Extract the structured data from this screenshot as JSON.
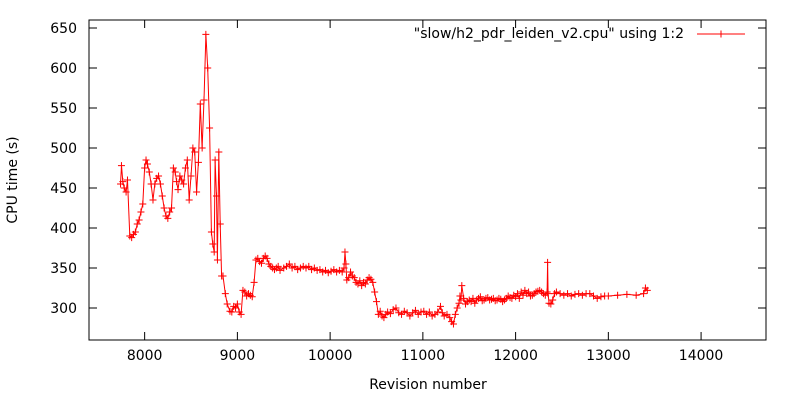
{
  "chart_data": {
    "type": "line",
    "title": "",
    "xlabel": "Revision number",
    "ylabel": "CPU time (s)",
    "xlim": [
      7400,
      14700
    ],
    "ylim": [
      260,
      660
    ],
    "xticks": [
      8000,
      9000,
      10000,
      11000,
      12000,
      13000,
      14000
    ],
    "yticks": [
      300,
      350,
      400,
      450,
      500,
      550,
      600,
      650
    ],
    "grid": false,
    "legend_position": "top-right",
    "series_color": "#ff0000",
    "series": [
      {
        "name": "\"slow/h2_pdr_leiden_v2.cpu\" using 1:2",
        "points": [
          [
            7740,
            455
          ],
          [
            7750,
            478
          ],
          [
            7765,
            458
          ],
          [
            7780,
            450
          ],
          [
            7800,
            445
          ],
          [
            7815,
            460
          ],
          [
            7840,
            390
          ],
          [
            7860,
            388
          ],
          [
            7880,
            392
          ],
          [
            7900,
            395
          ],
          [
            7920,
            405
          ],
          [
            7940,
            410
          ],
          [
            7960,
            420
          ],
          [
            7980,
            430
          ],
          [
            8000,
            475
          ],
          [
            8015,
            485
          ],
          [
            8030,
            480
          ],
          [
            8050,
            470
          ],
          [
            8070,
            455
          ],
          [
            8090,
            435
          ],
          [
            8110,
            455
          ],
          [
            8130,
            462
          ],
          [
            8150,
            465
          ],
          [
            8170,
            455
          ],
          [
            8190,
            440
          ],
          [
            8210,
            425
          ],
          [
            8230,
            415
          ],
          [
            8250,
            412
          ],
          [
            8270,
            420
          ],
          [
            8290,
            425
          ],
          [
            8310,
            475
          ],
          [
            8330,
            470
          ],
          [
            8345,
            458
          ],
          [
            8360,
            448
          ],
          [
            8380,
            465
          ],
          [
            8400,
            460
          ],
          [
            8420,
            455
          ],
          [
            8440,
            475
          ],
          [
            8460,
            485
          ],
          [
            8480,
            435
          ],
          [
            8500,
            465
          ],
          [
            8520,
            500
          ],
          [
            8540,
            495
          ],
          [
            8560,
            445
          ],
          [
            8580,
            482
          ],
          [
            8600,
            555
          ],
          [
            8620,
            500
          ],
          [
            8640,
            560
          ],
          [
            8660,
            642
          ],
          [
            8680,
            600
          ],
          [
            8700,
            525
          ],
          [
            8720,
            395
          ],
          [
            8735,
            380
          ],
          [
            8750,
            370
          ],
          [
            8760,
            485
          ],
          [
            8775,
            440
          ],
          [
            8785,
            360
          ],
          [
            8800,
            495
          ],
          [
            8815,
            405
          ],
          [
            8830,
            340
          ],
          [
            8845,
            340
          ],
          [
            8870,
            318
          ],
          [
            8890,
            305
          ],
          [
            8920,
            296
          ],
          [
            8940,
            295
          ],
          [
            8960,
            302
          ],
          [
            8980,
            300
          ],
          [
            9000,
            305
          ],
          [
            9020,
            295
          ],
          [
            9040,
            292
          ],
          [
            9060,
            322
          ],
          [
            9080,
            320
          ],
          [
            9100,
            315
          ],
          [
            9120,
            318
          ],
          [
            9140,
            316
          ],
          [
            9160,
            314
          ],
          [
            9180,
            332
          ],
          [
            9200,
            360
          ],
          [
            9220,
            362
          ],
          [
            9240,
            358
          ],
          [
            9260,
            356
          ],
          [
            9280,
            362
          ],
          [
            9300,
            365
          ],
          [
            9320,
            362
          ],
          [
            9340,
            355
          ],
          [
            9360,
            352
          ],
          [
            9380,
            350
          ],
          [
            9400,
            348
          ],
          [
            9420,
            350
          ],
          [
            9440,
            352
          ],
          [
            9460,
            347
          ],
          [
            9500,
            350
          ],
          [
            9530,
            352
          ],
          [
            9560,
            355
          ],
          [
            9590,
            350
          ],
          [
            9620,
            352
          ],
          [
            9650,
            348
          ],
          [
            9680,
            350
          ],
          [
            9710,
            352
          ],
          [
            9740,
            350
          ],
          [
            9770,
            352
          ],
          [
            9800,
            348
          ],
          [
            9830,
            350
          ],
          [
            9860,
            347
          ],
          [
            9890,
            348
          ],
          [
            9920,
            345
          ],
          [
            9950,
            347
          ],
          [
            9980,
            344
          ],
          [
            10010,
            346
          ],
          [
            10040,
            348
          ],
          [
            10070,
            345
          ],
          [
            10100,
            347
          ],
          [
            10130,
            345
          ],
          [
            10150,
            350
          ],
          [
            10160,
            370
          ],
          [
            10170,
            355
          ],
          [
            10180,
            335
          ],
          [
            10200,
            338
          ],
          [
            10220,
            345
          ],
          [
            10240,
            340
          ],
          [
            10260,
            338
          ],
          [
            10280,
            332
          ],
          [
            10300,
            330
          ],
          [
            10320,
            334
          ],
          [
            10340,
            328
          ],
          [
            10360,
            332
          ],
          [
            10380,
            330
          ],
          [
            10400,
            335
          ],
          [
            10420,
            338
          ],
          [
            10440,
            336
          ],
          [
            10460,
            332
          ],
          [
            10480,
            320
          ],
          [
            10500,
            308
          ],
          [
            10520,
            292
          ],
          [
            10540,
            296
          ],
          [
            10560,
            290
          ],
          [
            10580,
            288
          ],
          [
            10600,
            292
          ],
          [
            10620,
            295
          ],
          [
            10650,
            293
          ],
          [
            10680,
            298
          ],
          [
            10710,
            300
          ],
          [
            10740,
            294
          ],
          [
            10770,
            292
          ],
          [
            10800,
            296
          ],
          [
            10830,
            294
          ],
          [
            10860,
            290
          ],
          [
            10890,
            294
          ],
          [
            10920,
            297
          ],
          [
            10950,
            292
          ],
          [
            10980,
            295
          ],
          [
            11010,
            296
          ],
          [
            11040,
            292
          ],
          [
            11070,
            295
          ],
          [
            11100,
            290
          ],
          [
            11130,
            292
          ],
          [
            11160,
            295
          ],
          [
            11190,
            302
          ],
          [
            11210,
            294
          ],
          [
            11230,
            290
          ],
          [
            11260,
            292
          ],
          [
            11290,
            288
          ],
          [
            11310,
            283
          ],
          [
            11330,
            280
          ],
          [
            11350,
            292
          ],
          [
            11370,
            300
          ],
          [
            11390,
            306
          ],
          [
            11400,
            315
          ],
          [
            11410,
            310
          ],
          [
            11420,
            328
          ],
          [
            11440,
            312
          ],
          [
            11460,
            305
          ],
          [
            11480,
            308
          ],
          [
            11500,
            310
          ],
          [
            11520,
            308
          ],
          [
            11540,
            312
          ],
          [
            11560,
            306
          ],
          [
            11580,
            310
          ],
          [
            11600,
            312
          ],
          [
            11620,
            314
          ],
          [
            11640,
            309
          ],
          [
            11660,
            310
          ],
          [
            11680,
            312
          ],
          [
            11700,
            313
          ],
          [
            11720,
            310
          ],
          [
            11740,
            311
          ],
          [
            11760,
            312
          ],
          [
            11780,
            309
          ],
          [
            11800,
            310
          ],
          [
            11820,
            312
          ],
          [
            11840,
            311
          ],
          [
            11860,
            308
          ],
          [
            11880,
            310
          ],
          [
            11900,
            312
          ],
          [
            11920,
            315
          ],
          [
            11940,
            313
          ],
          [
            11960,
            312
          ],
          [
            11980,
            316
          ],
          [
            12000,
            314
          ],
          [
            12020,
            318
          ],
          [
            12040,
            312
          ],
          [
            12060,
            320
          ],
          [
            12080,
            316
          ],
          [
            12100,
            322
          ],
          [
            12120,
            318
          ],
          [
            12140,
            320
          ],
          [
            12160,
            315
          ],
          [
            12180,
            316
          ],
          [
            12200,
            318
          ],
          [
            12220,
            320
          ],
          [
            12240,
            321
          ],
          [
            12260,
            322
          ],
          [
            12280,
            320
          ],
          [
            12300,
            318
          ],
          [
            12320,
            316
          ],
          [
            12340,
            320
          ],
          [
            12345,
            357
          ],
          [
            12350,
            318
          ],
          [
            12360,
            306
          ],
          [
            12380,
            305
          ],
          [
            12400,
            310
          ],
          [
            12420,
            318
          ],
          [
            12440,
            320
          ],
          [
            12480,
            318
          ],
          [
            12520,
            316
          ],
          [
            12560,
            318
          ],
          [
            12600,
            315
          ],
          [
            12640,
            317
          ],
          [
            12680,
            318
          ],
          [
            12720,
            316
          ],
          [
            12760,
            318
          ],
          [
            12800,
            318
          ],
          [
            12840,
            315
          ],
          [
            12880,
            312
          ],
          [
            12920,
            314
          ],
          [
            12960,
            315
          ],
          [
            13000,
            315
          ],
          [
            13100,
            316
          ],
          [
            13200,
            317
          ],
          [
            13300,
            316
          ],
          [
            13380,
            318
          ],
          [
            13400,
            325
          ],
          [
            13420,
            322
          ]
        ]
      }
    ]
  }
}
